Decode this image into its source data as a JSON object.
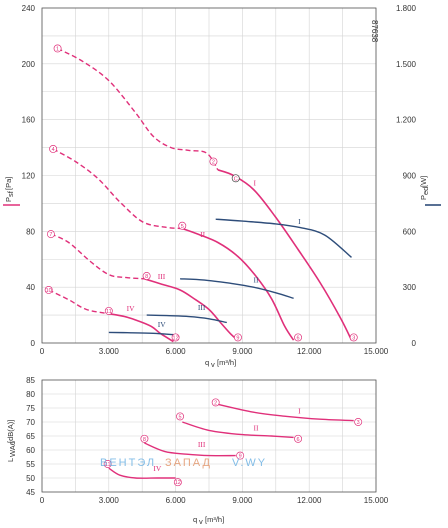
{
  "colors": {
    "pressure": "#e0307a",
    "power": "#2e4d7a",
    "grid": "#d4d4d4",
    "axis": "#555555",
    "watermark": "#5aa8e0"
  },
  "doc_code": "87638",
  "watermark": {
    "part1": "ВЕНТЭЛ",
    "part2": "ЗАПАД",
    "part3": "V.WY"
  },
  "chart_data": [
    {
      "type": "line",
      "xlabel": "q",
      "xlabel_sub": "v",
      "xlabel_unit": "[m³/h]",
      "xlim": [
        0,
        15000
      ],
      "x_ticks": [
        0,
        3000,
        6000,
        9000,
        12000,
        15000
      ],
      "x_tick_labels": [
        "0",
        "3.000",
        "6.000",
        "9.000",
        "12.000",
        "15.000"
      ],
      "ylabel_left": "P",
      "ylabel_left_sub": "sf",
      "ylabel_left_unit": "[Pa]",
      "ylim_left": [
        0,
        240
      ],
      "y_ticks_left": [
        0,
        40,
        80,
        120,
        160,
        200,
        240
      ],
      "y_tick_labels_left": [
        "0",
        "40",
        "80",
        "120",
        "160",
        "200",
        "240"
      ],
      "ylabel_right": "P",
      "ylabel_right_sub": "ed",
      "ylabel_right_unit": "[W]",
      "ylim_right": [
        0,
        1800
      ],
      "y_ticks_right": [
        0,
        300,
        600,
        900,
        1200,
        1500,
        1800
      ],
      "y_tick_labels_right": [
        "0",
        "300",
        "600",
        "900",
        "1.200",
        "1.500",
        "1.800"
      ],
      "grid": true,
      "pressure_curves": [
        {
          "name": "I",
          "dashed": [
            [
              700,
              211
            ],
            [
              1800,
              202
            ],
            [
              3000,
              188
            ],
            [
              4200,
              165
            ],
            [
              5000,
              148
            ],
            [
              5800,
              140
            ],
            [
              6600,
              138
            ],
            [
              7400,
              136
            ],
            [
              7900,
              124
            ]
          ],
          "solid": [
            [
              7900,
              124
            ],
            [
              8600,
              120
            ],
            [
              9500,
              110
            ],
            [
              10500,
              90
            ],
            [
              11500,
              67
            ],
            [
              12500,
              43
            ],
            [
              13400,
              18
            ],
            [
              13900,
              2
            ]
          ],
          "label_pos": [
            9500,
            113
          ],
          "markers": [
            {
              "text": "1",
              "x": 700,
              "y": 211
            },
            {
              "text": "2",
              "x": 7700,
              "y": 130
            },
            {
              "text": "C",
              "x": 8700,
              "y": 118
            },
            {
              "text": "3",
              "x": 14000,
              "y": 4
            }
          ]
        },
        {
          "name": "II",
          "dashed": [
            [
              500,
              139
            ],
            [
              1500,
              130
            ],
            [
              2500,
              118
            ],
            [
              3500,
              101
            ],
            [
              4500,
              87
            ],
            [
              5500,
              83
            ],
            [
              6300,
              82
            ]
          ],
          "solid": [
            [
              6300,
              82
            ],
            [
              7000,
              78
            ],
            [
              7900,
              72
            ],
            [
              8800,
              62
            ],
            [
              9600,
              48
            ],
            [
              10300,
              32
            ],
            [
              10900,
              12
            ],
            [
              11300,
              2
            ]
          ],
          "label_pos": [
            7100,
            76
          ],
          "markers": [
            {
              "text": "4",
              "x": 500,
              "y": 139
            },
            {
              "text": "5",
              "x": 6300,
              "y": 84
            },
            {
              "text": "6",
              "x": 11500,
              "y": 4
            }
          ]
        },
        {
          "name": "III",
          "dashed": [
            [
              400,
              78
            ],
            [
              1200,
              72
            ],
            [
              2200,
              58
            ],
            [
              3000,
              49
            ],
            [
              3700,
              47
            ],
            [
              4600,
              46
            ]
          ],
          "solid": [
            [
              4600,
              46
            ],
            [
              5400,
              42
            ],
            [
              6200,
              38
            ],
            [
              6900,
              31
            ],
            [
              7500,
              24
            ],
            [
              8000,
              15
            ],
            [
              8500,
              6
            ],
            [
              8800,
              2
            ]
          ],
          "label_pos": [
            5200,
            46
          ],
          "markers": [
            {
              "text": "7",
              "x": 400,
              "y": 78
            },
            {
              "text": "8",
              "x": 4700,
              "y": 48
            },
            {
              "text": "9",
              "x": 8800,
              "y": 4
            }
          ]
        },
        {
          "name": "IV",
          "dashed": [
            [
              300,
              38
            ],
            [
              1200,
              31
            ],
            [
              2000,
              24
            ],
            [
              3000,
              21
            ]
          ],
          "solid": [
            [
              3000,
              21
            ],
            [
              3700,
              19
            ],
            [
              4300,
              16
            ],
            [
              4900,
              12
            ],
            [
              5300,
              7
            ],
            [
              5700,
              3
            ],
            [
              5900,
              1
            ]
          ],
          "label_pos": [
            3800,
            23
          ],
          "markers": [
            {
              "text": "10",
              "x": 300,
              "y": 38
            },
            {
              "text": "11",
              "x": 3000,
              "y": 23
            },
            {
              "text": "12",
              "x": 6000,
              "y": 4
            }
          ]
        }
      ],
      "power_curves": [
        {
          "name": "I",
          "points": [
            [
              7800,
              665
            ],
            [
              9000,
              655
            ],
            [
              10500,
              640
            ],
            [
              11600,
              620
            ],
            [
              12700,
              580
            ],
            [
              13900,
              460
            ]
          ],
          "label_pos": [
            11500,
            640
          ]
        },
        {
          "name": "II",
          "points": [
            [
              6200,
              345
            ],
            [
              7300,
              338
            ],
            [
              8500,
              320
            ],
            [
              9500,
              300
            ],
            [
              10500,
              270
            ],
            [
              11300,
              240
            ]
          ],
          "label_pos": [
            9500,
            325
          ]
        },
        {
          "name": "III",
          "points": [
            [
              4700,
              150
            ],
            [
              5600,
              147
            ],
            [
              6600,
              142
            ],
            [
              7500,
              130
            ],
            [
              8300,
              110
            ]
          ],
          "label_pos": [
            7000,
            178
          ]
        },
        {
          "name": "IV",
          "points": [
            [
              3000,
              57
            ],
            [
              4000,
              55
            ],
            [
              5000,
              52
            ],
            [
              5900,
              45
            ]
          ],
          "label_pos": [
            5200,
            85
          ]
        }
      ]
    },
    {
      "type": "line",
      "xlabel": "q",
      "xlabel_sub": "v",
      "xlabel_unit": "[m³/h]",
      "xlim": [
        0,
        15000
      ],
      "x_ticks": [
        0,
        3000,
        6000,
        9000,
        12000,
        15000
      ],
      "x_tick_labels": [
        "0",
        "3.000",
        "6.000",
        "9.000",
        "12.000",
        "15.000"
      ],
      "ylabel": "L",
      "ylabel_sub": "WA6",
      "ylabel_unit": "[dB(A)]",
      "ylim": [
        45,
        85
      ],
      "y_ticks": [
        45,
        50,
        55,
        60,
        65,
        70,
        75,
        80,
        85
      ],
      "y_tick_labels": [
        "45",
        "50",
        "55",
        "60",
        "65",
        "70",
        "75",
        "80",
        "85"
      ],
      "grid": true,
      "series": [
        {
          "name": "I",
          "points": [
            [
              7800,
              76.5
            ],
            [
              9500,
              73.5
            ],
            [
              11000,
              72
            ],
            [
              12500,
              71
            ],
            [
              14000,
              70.5
            ]
          ],
          "label_pos": [
            11500,
            73
          ],
          "markers": [
            {
              "text": "2",
              "x": 7800,
              "y": 77
            },
            {
              "text": "3",
              "x": 14200,
              "y": 70
            }
          ]
        },
        {
          "name": "II",
          "points": [
            [
              6300,
              70
            ],
            [
              7500,
              67
            ],
            [
              9000,
              65.5
            ],
            [
              10300,
              65
            ],
            [
              11300,
              64.5
            ]
          ],
          "label_pos": [
            9500,
            67
          ],
          "markers": [
            {
              "text": "5",
              "x": 6200,
              "y": 72
            },
            {
              "text": "6",
              "x": 11500,
              "y": 64
            }
          ]
        },
        {
          "name": "III",
          "points": [
            [
              4600,
              62.5
            ],
            [
              5500,
              59.5
            ],
            [
              6500,
              58.5
            ],
            [
              7500,
              58
            ],
            [
              8700,
              58
            ]
          ],
          "label_pos": [
            7000,
            61
          ],
          "markers": [
            {
              "text": "8",
              "x": 4600,
              "y": 64
            },
            {
              "text": "9",
              "x": 8900,
              "y": 58
            }
          ]
        },
        {
          "name": "IV",
          "points": [
            [
              3000,
              53.5
            ],
            [
              3500,
              51
            ],
            [
              4200,
              50
            ],
            [
              5200,
              50
            ],
            [
              6000,
              50
            ]
          ],
          "label_pos": [
            5000,
            52.5
          ],
          "markers": [
            {
              "text": "11",
              "x": 2950,
              "y": 55
            },
            {
              "text": "12",
              "x": 6100,
              "y": 48.5
            }
          ]
        }
      ]
    }
  ]
}
